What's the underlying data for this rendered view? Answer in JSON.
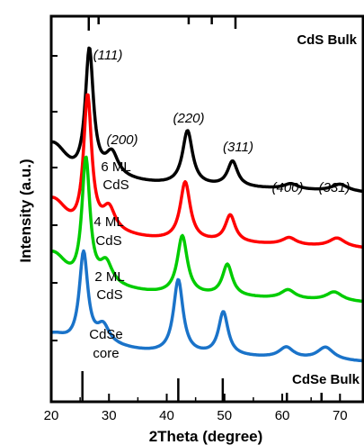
{
  "chart_data": {
    "type": "line",
    "xlabel": "2Theta (degree)",
    "ylabel": "Intensity (a.u.)",
    "xlim": [
      20,
      74
    ],
    "xticks": [
      20,
      30,
      40,
      50,
      60,
      70
    ],
    "y_scale": "arbitrary units, offset stacked traces",
    "grid": false,
    "peak_labels": [
      {
        "text": "(111)",
        "x": 26.5
      },
      {
        "text": "(200)",
        "x": 30.5
      },
      {
        "text": "(220)",
        "x": 43.5
      },
      {
        "text": "(311)",
        "x": 51.5
      },
      {
        "text": "(400)",
        "x": 60.5
      },
      {
        "text": "(331)",
        "x": 68.5
      }
    ],
    "reference_labels": {
      "top": "CdS Bulk",
      "bottom": "CdSe Bulk"
    },
    "reference_lines": {
      "top_CdS_bulk": [
        26.5,
        28.2,
        43.8,
        47.8,
        51.9
      ],
      "bottom_CdSe_bulk": [
        25.4,
        42.0,
        49.7,
        60.8,
        66.8
      ]
    },
    "series": [
      {
        "name": "6 ML CdS",
        "label_lines": [
          "6 ML",
          "CdS"
        ],
        "color": "#000000",
        "peaks": [
          26.6,
          30.5,
          43.6,
          51.4,
          61.5,
          70.0
        ]
      },
      {
        "name": "4 ML CdS",
        "label_lines": [
          "4 ML",
          "CdS"
        ],
        "color": "#ff0000",
        "peaks": [
          26.3,
          30.0,
          43.2,
          51.0,
          61.2,
          69.5
        ]
      },
      {
        "name": "2 ML CdS",
        "label_lines": [
          "2 ML",
          "CdS"
        ],
        "color": "#00cc00",
        "peaks": [
          26.0,
          29.5,
          42.7,
          50.5,
          61.0,
          69.0
        ]
      },
      {
        "name": "CdSe core",
        "label_lines": [
          "CdSe",
          "core"
        ],
        "color": "#1a73c9",
        "peaks": [
          25.6,
          29.0,
          42.0,
          49.8,
          60.7,
          67.5
        ]
      }
    ]
  }
}
